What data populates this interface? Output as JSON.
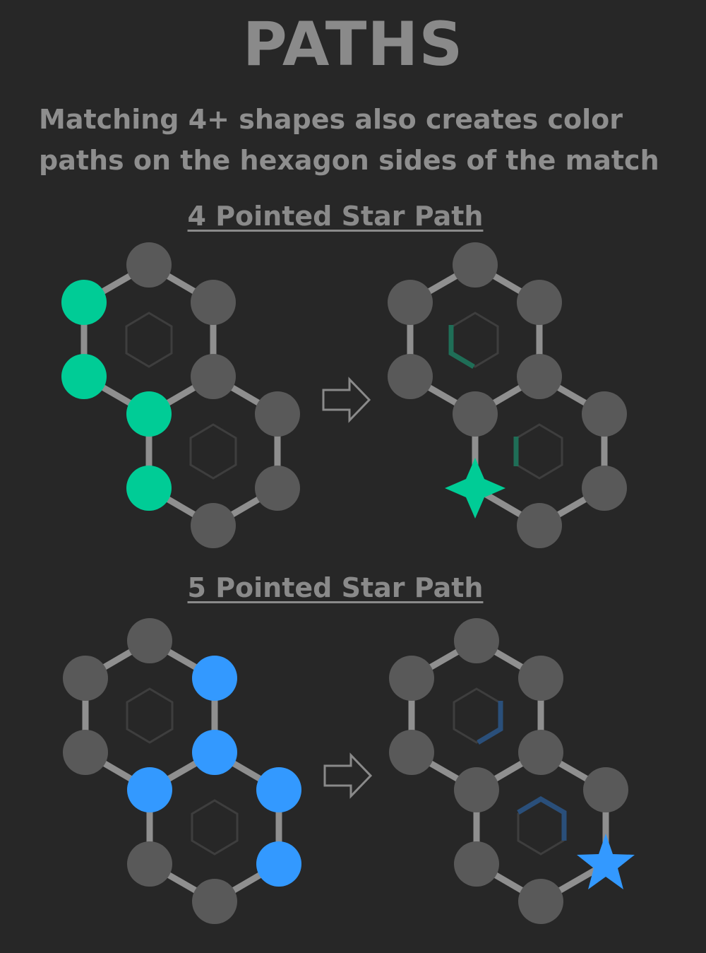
{
  "title": "PATHS",
  "description": "Matching 4+ shapes also creates color paths on the hexagon sides of the match",
  "sections": [
    {
      "heading": "4 Pointed Star Path",
      "match_color": "#00cc96",
      "path_color": "#1f6e57",
      "result_shape": "4-pointed-star"
    },
    {
      "heading": "5 Pointed Star Path",
      "match_color": "#3399ff",
      "path_color": "#2a4f7a",
      "result_shape": "5-pointed-star"
    }
  ],
  "colors": {
    "background": "#272727",
    "node": "#595959",
    "edge": "#8f8f8f",
    "hexagon_outline": "#3e3e3e",
    "arrow": "#8a8a8a"
  }
}
